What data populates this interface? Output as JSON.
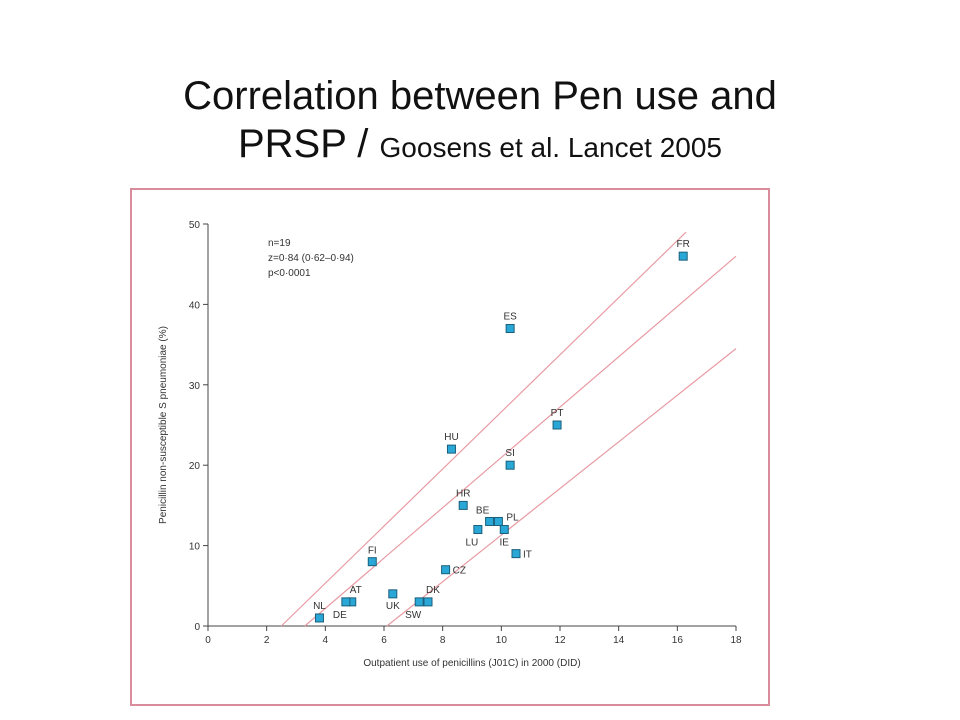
{
  "title": {
    "line1": "Correlation between Pen use and",
    "line2_main": "PRSP / ",
    "line2_small": "Goosens et al. Lancet 2005"
  },
  "chart_data": {
    "type": "scatter",
    "xlabel": "Outpatient use of penicillins (J01C) in 2000 (DID)",
    "ylabel": "Penicillin non-susceptible S pneumoniae (%)",
    "xlim": [
      0,
      18
    ],
    "ylim": [
      0,
      50
    ],
    "xticks": [
      0,
      2,
      4,
      6,
      8,
      10,
      12,
      14,
      16,
      18
    ],
    "yticks": [
      0,
      10,
      20,
      30,
      40,
      50
    ],
    "annotations": [
      "n=19",
      "z=0·84 (0·62–0·94)",
      "p<0·0001"
    ],
    "marker_color": "#29a8d8",
    "line_color": "#e89aa3",
    "points": [
      {
        "label": "FR",
        "x": 16.2,
        "y": 46
      },
      {
        "label": "ES",
        "x": 10.3,
        "y": 37
      },
      {
        "label": "PT",
        "x": 11.9,
        "y": 25
      },
      {
        "label": "HU",
        "x": 8.3,
        "y": 22
      },
      {
        "label": "SI",
        "x": 10.3,
        "y": 20
      },
      {
        "label": "HR",
        "x": 8.7,
        "y": 15
      },
      {
        "label": "BE",
        "x": 9.6,
        "y": 13
      },
      {
        "label": "PL",
        "x": 9.9,
        "y": 13
      },
      {
        "label": "LU",
        "x": 9.2,
        "y": 12
      },
      {
        "label": "IE",
        "x": 10.1,
        "y": 12
      },
      {
        "label": "IT",
        "x": 10.5,
        "y": 9
      },
      {
        "label": "FI",
        "x": 5.6,
        "y": 8
      },
      {
        "label": "CZ",
        "x": 8.1,
        "y": 7
      },
      {
        "label": "UK",
        "x": 6.3,
        "y": 4
      },
      {
        "label": "AT",
        "x": 4.9,
        "y": 3
      },
      {
        "label": "DE",
        "x": 4.7,
        "y": 3
      },
      {
        "label": "SW",
        "x": 7.2,
        "y": 3
      },
      {
        "label": "DK",
        "x": 7.5,
        "y": 3
      },
      {
        "label": "NL",
        "x": 3.8,
        "y": 1
      }
    ],
    "regression_lines": [
      {
        "name": "fit",
        "from": [
          3.3,
          0
        ],
        "to": [
          18,
          46
        ]
      },
      {
        "name": "upper-ci",
        "from": [
          2.5,
          0
        ],
        "to": [
          16.3,
          49
        ]
      },
      {
        "name": "lower-ci",
        "from": [
          6.1,
          0
        ],
        "to": [
          18,
          34.5
        ]
      }
    ]
  }
}
